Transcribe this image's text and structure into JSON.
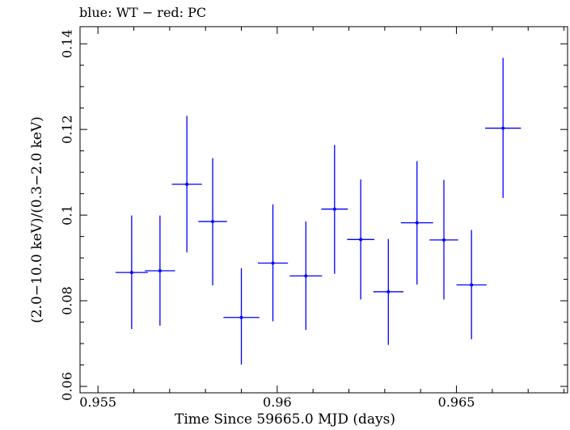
{
  "chart_data": {
    "type": "scatter",
    "title": "blue: WT − red: PC",
    "xlabel": "Time Since 59665.0 MJD (days)",
    "ylabel": "(2.0−10.0 keV)/(0.3−2.0 keV)",
    "xlim": [
      0.9545,
      0.9681
    ],
    "ylim": [
      0.0585,
      0.144
    ],
    "xticks": [
      0.955,
      0.96,
      0.965
    ],
    "xtick_labels": [
      "0.955",
      "0.96",
      "0.965"
    ],
    "yticks": [
      0.06,
      0.08,
      0.1,
      0.12,
      0.14
    ],
    "ytick_labels": [
      "0.06",
      "0.08",
      "0.1",
      "0.12",
      "0.14"
    ],
    "series": [
      {
        "name": "WT",
        "color": "#0000ff",
        "points": [
          {
            "x": 0.95594,
            "xerr": 0.00045,
            "y": 0.0866,
            "ylo": 0.0734,
            "yhi": 0.0999
          },
          {
            "x": 0.95673,
            "xerr": 0.00042,
            "y": 0.087,
            "ylo": 0.0742,
            "yhi": 0.0999
          },
          {
            "x": 0.95748,
            "xerr": 0.00042,
            "y": 0.1072,
            "ylo": 0.0913,
            "yhi": 0.1232
          },
          {
            "x": 0.9582,
            "xerr": 0.0004,
            "y": 0.0985,
            "ylo": 0.0836,
            "yhi": 0.1133
          },
          {
            "x": 0.959,
            "xerr": 0.0005,
            "y": 0.0761,
            "ylo": 0.0651,
            "yhi": 0.0876
          },
          {
            "x": 0.95988,
            "xerr": 0.00042,
            "y": 0.0888,
            "ylo": 0.0752,
            "yhi": 0.1025
          },
          {
            "x": 0.9608,
            "xerr": 0.00045,
            "y": 0.0858,
            "ylo": 0.0732,
            "yhi": 0.0985
          },
          {
            "x": 0.9616,
            "xerr": 0.00037,
            "y": 0.1014,
            "ylo": 0.0863,
            "yhi": 0.1164
          },
          {
            "x": 0.96233,
            "xerr": 0.00038,
            "y": 0.0943,
            "ylo": 0.0803,
            "yhi": 0.1083
          },
          {
            "x": 0.9631,
            "xerr": 0.00042,
            "y": 0.0821,
            "ylo": 0.0697,
            "yhi": 0.0944
          },
          {
            "x": 0.9639,
            "xerr": 0.00045,
            "y": 0.0982,
            "ylo": 0.0838,
            "yhi": 0.1126
          },
          {
            "x": 0.96465,
            "xerr": 0.0004,
            "y": 0.0942,
            "ylo": 0.0803,
            "yhi": 0.1082
          },
          {
            "x": 0.96542,
            "xerr": 0.00042,
            "y": 0.0837,
            "ylo": 0.071,
            "yhi": 0.0965
          },
          {
            "x": 0.9663,
            "xerr": 0.0005,
            "y": 0.1203,
            "ylo": 0.104,
            "yhi": 0.1367
          }
        ]
      }
    ]
  }
}
